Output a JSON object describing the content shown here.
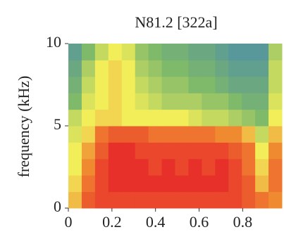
{
  "chart_data": {
    "type": "heatmap",
    "title": "N81.2 [322a]",
    "y_label": "frequency (kHz)",
    "xlim": [
      0,
      0.98
    ],
    "xticks": [
      0,
      0.2,
      0.4,
      0.6,
      0.8
    ],
    "ylim": [
      0,
      10
    ],
    "yticks": [
      0,
      5,
      10
    ],
    "values": [
      [
        0.7,
        0.9,
        0.95,
        0.95,
        0.95,
        0.95,
        0.95,
        0.95,
        0.95,
        0.95,
        0.95,
        0.95,
        0.95,
        0.9,
        0.85,
        0.8
      ],
      [
        0.65,
        0.85,
        0.95,
        1,
        1,
        1,
        1,
        1,
        1,
        1,
        1,
        1,
        0.95,
        0.9,
        0.7,
        0.85
      ],
      [
        0.6,
        0.8,
        0.95,
        1,
        1,
        1,
        0.95,
        1,
        0.95,
        1,
        0.95,
        1,
        0.95,
        0.85,
        0.65,
        0.85
      ],
      [
        0.6,
        0.75,
        0.9,
        1,
        1,
        0.95,
        0.95,
        0.95,
        0.95,
        0.95,
        0.95,
        0.95,
        0.9,
        0.85,
        0.6,
        0.8
      ],
      [
        0.55,
        0.65,
        0.85,
        0.9,
        0.9,
        0.9,
        0.85,
        0.85,
        0.85,
        0.85,
        0.85,
        0.8,
        0.8,
        0.7,
        0.5,
        0.7
      ],
      [
        0.5,
        0.6,
        0.65,
        0.65,
        0.6,
        0.6,
        0.6,
        0.6,
        0.6,
        0.55,
        0.5,
        0.5,
        0.45,
        0.4,
        0.35,
        0.6
      ],
      [
        0.35,
        0.55,
        0.6,
        0.65,
        0.6,
        0.55,
        0.5,
        0.45,
        0.45,
        0.45,
        0.4,
        0.4,
        0.35,
        0.3,
        0.3,
        0.55
      ],
      [
        0.3,
        0.5,
        0.6,
        0.65,
        0.6,
        0.5,
        0.45,
        0.4,
        0.4,
        0.35,
        0.35,
        0.3,
        0.25,
        0.25,
        0.25,
        0.5
      ],
      [
        0.25,
        0.45,
        0.6,
        0.65,
        0.6,
        0.45,
        0.4,
        0.35,
        0.35,
        0.3,
        0.3,
        0.25,
        0.2,
        0.2,
        0.2,
        0.5
      ],
      [
        0.2,
        0.35,
        0.5,
        0.6,
        0.55,
        0.4,
        0.35,
        0.3,
        0.3,
        0.25,
        0.25,
        0.2,
        0.15,
        0.15,
        0.15,
        0.45
      ]
    ]
  }
}
